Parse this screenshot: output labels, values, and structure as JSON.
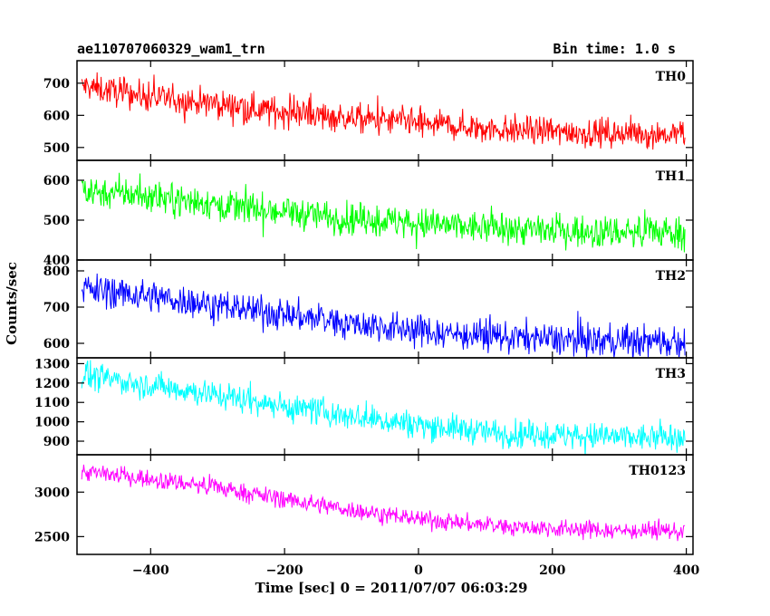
{
  "header": {
    "title": "ae110707060329_wam1_trn",
    "bin_time": "Bin time: 1.0 s"
  },
  "chart_data": {
    "type": "line",
    "xlabel": "Time [sec] 0 = 2011/07/07 06:03:29",
    "ylabel": "Counts/sec",
    "xlim": [
      -510,
      410
    ],
    "x_ticks": [
      -400,
      -200,
      0,
      200,
      400
    ],
    "x_tick_labels": [
      "−400",
      "−200",
      "0",
      "200",
      "400"
    ],
    "x_range": [
      -503,
      398
    ],
    "panels": [
      {
        "name": "TH0",
        "color": "#ff0000",
        "ylim": [
          460,
          770
        ],
        "yticks": [
          500,
          600,
          700
        ],
        "start": 690,
        "end": 540,
        "noise": 22,
        "spread": 45,
        "samples": [
          {
            "x": -500,
            "y": 690
          },
          {
            "x": -400,
            "y": 655
          },
          {
            "x": -300,
            "y": 635
          },
          {
            "x": -200,
            "y": 610
          },
          {
            "x": -100,
            "y": 590
          },
          {
            "x": 0,
            "y": 575
          },
          {
            "x": 100,
            "y": 560
          },
          {
            "x": 200,
            "y": 550
          },
          {
            "x": 300,
            "y": 545
          },
          {
            "x": 395,
            "y": 540
          }
        ]
      },
      {
        "name": "TH1",
        "color": "#00ff00",
        "ylim": [
          400,
          650
        ],
        "yticks": [
          400,
          500,
          600
        ],
        "start": 575,
        "end": 470,
        "noise": 20,
        "spread": 40,
        "samples": [
          {
            "x": -500,
            "y": 575
          },
          {
            "x": -400,
            "y": 560
          },
          {
            "x": -300,
            "y": 540
          },
          {
            "x": -200,
            "y": 520
          },
          {
            "x": -100,
            "y": 505
          },
          {
            "x": 0,
            "y": 490
          },
          {
            "x": 100,
            "y": 480
          },
          {
            "x": 200,
            "y": 475
          },
          {
            "x": 300,
            "y": 470
          },
          {
            "x": 395,
            "y": 470
          }
        ]
      },
      {
        "name": "TH2",
        "color": "#0000ff",
        "ylim": [
          560,
          830
        ],
        "yticks": [
          600,
          700,
          800
        ],
        "start": 750,
        "end": 605,
        "noise": 22,
        "spread": 40,
        "samples": [
          {
            "x": -500,
            "y": 750
          },
          {
            "x": -400,
            "y": 730
          },
          {
            "x": -300,
            "y": 705
          },
          {
            "x": -200,
            "y": 680
          },
          {
            "x": -100,
            "y": 655
          },
          {
            "x": 0,
            "y": 635
          },
          {
            "x": 100,
            "y": 620
          },
          {
            "x": 200,
            "y": 612
          },
          {
            "x": 300,
            "y": 607
          },
          {
            "x": 395,
            "y": 605
          }
        ]
      },
      {
        "name": "TH3",
        "color": "#00ffff",
        "ylim": [
          830,
          1330
        ],
        "yticks": [
          900,
          1000,
          1100,
          1200,
          1300
        ],
        "start": 1240,
        "end": 915,
        "noise": 35,
        "spread": 70,
        "samples": [
          {
            "x": -500,
            "y": 1240
          },
          {
            "x": -400,
            "y": 1190
          },
          {
            "x": -300,
            "y": 1140
          },
          {
            "x": -200,
            "y": 1080
          },
          {
            "x": -100,
            "y": 1030
          },
          {
            "x": 0,
            "y": 985
          },
          {
            "x": 100,
            "y": 950
          },
          {
            "x": 200,
            "y": 930
          },
          {
            "x": 300,
            "y": 920
          },
          {
            "x": 395,
            "y": 915
          }
        ]
      },
      {
        "name": "TH0123",
        "color": "#ff00ff",
        "ylim": [
          2300,
          3420
        ],
        "yticks": [
          2500,
          3000
        ],
        "start": 3230,
        "end": 2560,
        "noise": 50,
        "spread": 90,
        "samples": [
          {
            "x": -500,
            "y": 3230
          },
          {
            "x": -400,
            "y": 3150
          },
          {
            "x": -300,
            "y": 3050
          },
          {
            "x": -200,
            "y": 2920
          },
          {
            "x": -100,
            "y": 2800
          },
          {
            "x": 0,
            "y": 2700
          },
          {
            "x": 100,
            "y": 2630
          },
          {
            "x": 200,
            "y": 2590
          },
          {
            "x": 300,
            "y": 2570
          },
          {
            "x": 395,
            "y": 2560
          }
        ]
      }
    ]
  }
}
